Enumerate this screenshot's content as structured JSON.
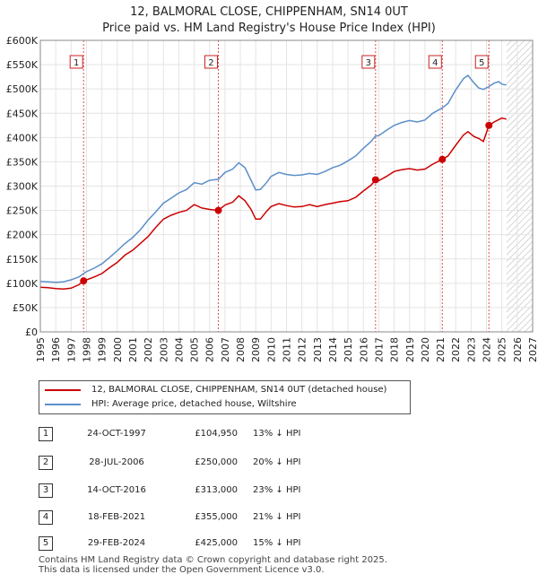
{
  "title_line1": "12, BALMORAL CLOSE, CHIPPENHAM, SN14 0UT",
  "title_line2": "Price paid vs. HM Land Registry's House Price Index (HPI)",
  "chart_data": {
    "type": "line",
    "title": "Price paid vs. HM Land Registry's House Price Index (HPI)",
    "xlim": [
      1995,
      2027
    ],
    "ylim": [
      0,
      600000
    ],
    "yticks": [
      0,
      50000,
      100000,
      150000,
      200000,
      250000,
      300000,
      350000,
      400000,
      450000,
      500000,
      550000,
      600000
    ],
    "ytick_labels": [
      "£0",
      "£50K",
      "£100K",
      "£150K",
      "£200K",
      "£250K",
      "£300K",
      "£350K",
      "£400K",
      "£450K",
      "£500K",
      "£550K",
      "£600K"
    ],
    "xticks": [
      1995,
      1996,
      1997,
      1998,
      1999,
      2000,
      2001,
      2002,
      2003,
      2004,
      2005,
      2006,
      2007,
      2008,
      2009,
      2010,
      2011,
      2012,
      2013,
      2014,
      2015,
      2016,
      2017,
      2018,
      2019,
      2020,
      2021,
      2022,
      2023,
      2024,
      2025,
      2026,
      2027
    ],
    "hatched_from": 2025.3,
    "series": [
      {
        "name": "12, BALMORAL CLOSE, CHIPPENHAM, SN14 0UT (detached house)",
        "color": "#cc0000",
        "x": [
          1995.0,
          1995.5,
          1996.0,
          1996.5,
          1997.0,
          1997.5,
          1997.81,
          1998.0,
          1998.5,
          1999.0,
          1999.5,
          2000.0,
          2000.5,
          2001.0,
          2001.5,
          2002.0,
          2002.5,
          2003.0,
          2003.5,
          2004.0,
          2004.5,
          2005.0,
          2005.5,
          2006.0,
          2006.57,
          2007.0,
          2007.5,
          2007.9,
          2008.3,
          2008.7,
          2009.0,
          2009.3,
          2009.7,
          2010.0,
          2010.5,
          2011.0,
          2011.5,
          2012.0,
          2012.5,
          2013.0,
          2013.5,
          2014.0,
          2014.5,
          2015.0,
          2015.5,
          2016.0,
          2016.5,
          2016.79,
          2017.0,
          2017.5,
          2018.0,
          2018.5,
          2019.0,
          2019.5,
          2020.0,
          2020.5,
          2021.13,
          2021.5,
          2022.0,
          2022.5,
          2022.8,
          2023.2,
          2023.5,
          2023.8,
          2024.16,
          2024.5,
          2024.8,
          2025.0,
          2025.3
        ],
        "y": [
          92000,
          91000,
          89000,
          88000,
          90000,
          97000,
          104950,
          107000,
          113000,
          120000,
          132000,
          143000,
          158000,
          168000,
          182000,
          196000,
          215000,
          232000,
          240000,
          246000,
          250000,
          262000,
          255000,
          252000,
          250000,
          261000,
          267000,
          280000,
          270000,
          252000,
          232000,
          232000,
          248000,
          258000,
          264000,
          260000,
          257000,
          258000,
          262000,
          258000,
          262000,
          265000,
          268000,
          270000,
          277000,
          290000,
          302000,
          313000,
          311000,
          320000,
          330000,
          334000,
          336000,
          333000,
          335000,
          345000,
          355000,
          362000,
          384000,
          405000,
          412000,
          402000,
          398000,
          392000,
          425000,
          432000,
          437000,
          440000,
          438000
        ]
      },
      {
        "name": "HPI: Average price, detached house, Wiltshire",
        "color": "#5b8fc9",
        "x": [
          1995.0,
          1995.5,
          1996.0,
          1996.5,
          1997.0,
          1997.5,
          1997.81,
          1998.0,
          1998.5,
          1999.0,
          1999.5,
          2000.0,
          2000.5,
          2001.0,
          2001.5,
          2002.0,
          2002.5,
          2003.0,
          2003.5,
          2004.0,
          2004.5,
          2005.0,
          2005.5,
          2006.0,
          2006.57,
          2007.0,
          2007.5,
          2007.9,
          2008.3,
          2008.7,
          2009.0,
          2009.3,
          2009.7,
          2010.0,
          2010.5,
          2011.0,
          2011.5,
          2012.0,
          2012.5,
          2013.0,
          2013.5,
          2014.0,
          2014.5,
          2015.0,
          2015.5,
          2016.0,
          2016.5,
          2016.79,
          2017.0,
          2017.5,
          2018.0,
          2018.5,
          2019.0,
          2019.5,
          2020.0,
          2020.5,
          2021.13,
          2021.5,
          2022.0,
          2022.5,
          2022.8,
          2023.2,
          2023.5,
          2023.8,
          2024.16,
          2024.5,
          2024.8,
          2025.0,
          2025.3
        ],
        "y": [
          104000,
          103000,
          102000,
          103000,
          107000,
          113000,
          120000,
          124000,
          131000,
          140000,
          153000,
          167000,
          182000,
          194000,
          210000,
          230000,
          247000,
          265000,
          275000,
          286000,
          293000,
          307000,
          304000,
          312000,
          314000,
          328000,
          335000,
          348000,
          338000,
          312000,
          292000,
          293000,
          307000,
          320000,
          328000,
          324000,
          322000,
          323000,
          326000,
          324000,
          330000,
          338000,
          343000,
          352000,
          362000,
          378000,
          392000,
          403000,
          404000,
          415000,
          425000,
          431000,
          435000,
          432000,
          436000,
          450000,
          461000,
          470000,
          498000,
          521000,
          528000,
          512000,
          502000,
          499000,
          505000,
          512000,
          515000,
          510000,
          508000
        ]
      }
    ],
    "markers": [
      {
        "label": "1",
        "x": 1997.81,
        "y": 104950
      },
      {
        "label": "2",
        "x": 2006.57,
        "y": 250000
      },
      {
        "label": "3",
        "x": 2016.79,
        "y": 313000
      },
      {
        "label": "4",
        "x": 2021.13,
        "y": 355000
      },
      {
        "label": "5",
        "x": 2024.16,
        "y": 425000
      }
    ]
  },
  "legend": {
    "property_label": "12, BALMORAL CLOSE, CHIPPENHAM, SN14 0UT (detached house)",
    "hpi_label": "HPI: Average price, detached house, Wiltshire",
    "property_color": "#cc0000",
    "hpi_color": "#5b8fc9"
  },
  "sales": [
    {
      "num": "1",
      "date": "24-OCT-1997",
      "price": "£104,950",
      "hpi": "13% ↓ HPI"
    },
    {
      "num": "2",
      "date": "28-JUL-2006",
      "price": "£250,000",
      "hpi": "20% ↓ HPI"
    },
    {
      "num": "3",
      "date": "14-OCT-2016",
      "price": "£313,000",
      "hpi": "23% ↓ HPI"
    },
    {
      "num": "4",
      "date": "18-FEB-2021",
      "price": "£355,000",
      "hpi": "21% ↓ HPI"
    },
    {
      "num": "5",
      "date": "29-FEB-2024",
      "price": "£425,000",
      "hpi": "15% ↓ HPI"
    }
  ],
  "footer": {
    "line1": "Contains HM Land Registry data © Crown copyright and database right 2025.",
    "line2": "This data is licensed under the Open Government Licence v3.0."
  }
}
